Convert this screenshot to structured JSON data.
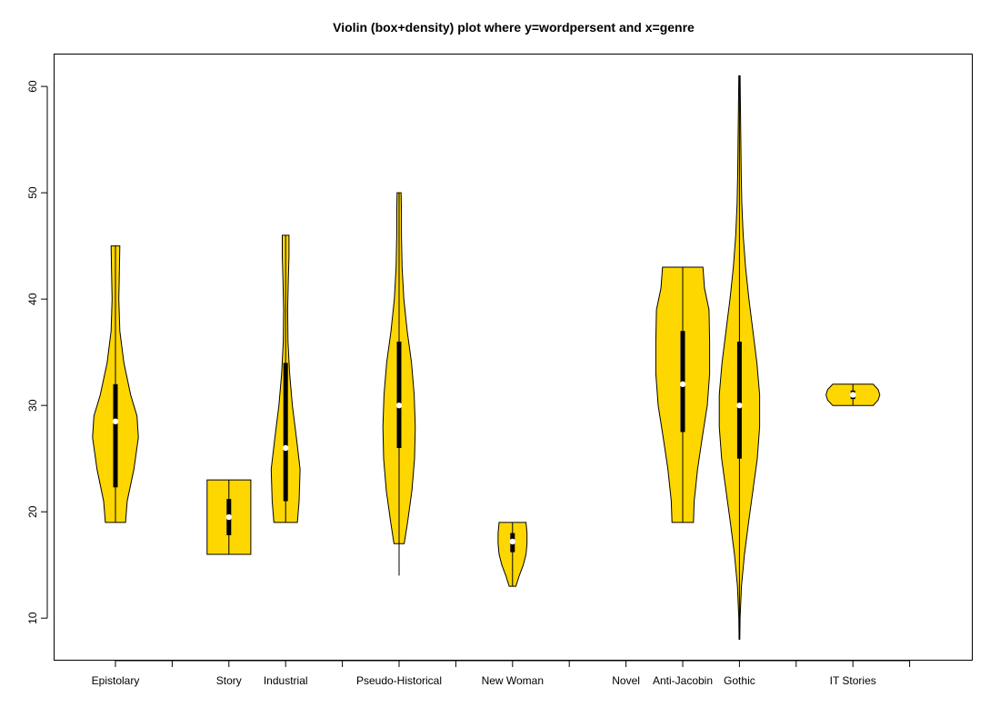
{
  "chart_data": {
    "type": "violin",
    "title": "Violin (box+density) plot where y=wordpersent and x=genre",
    "xlabel": "",
    "ylabel": "",
    "ylim": [
      6,
      63
    ],
    "yticks": [
      10,
      20,
      30,
      40,
      50,
      60
    ],
    "fill_color": "#FFD700",
    "tick_labels": [
      "Epistolary",
      "",
      "Story",
      "Industrial",
      "",
      "Pseudo-Historical",
      "",
      "New Woman",
      "",
      "Novel",
      "Anti-Jacobin",
      "Gothic",
      "",
      "IT Stories",
      ""
    ],
    "categories": [
      {
        "label": "Epistolary",
        "min": 19,
        "max": 45,
        "q1": 22.3,
        "median": 28.5,
        "q3": 32,
        "density": [
          [
            19,
            0.3
          ],
          [
            21,
            0.35
          ],
          [
            24,
            0.55
          ],
          [
            27,
            0.68
          ],
          [
            29,
            0.64
          ],
          [
            31,
            0.45
          ],
          [
            34,
            0.25
          ],
          [
            37,
            0.13
          ],
          [
            40,
            0.1
          ],
          [
            43,
            0.12
          ],
          [
            45,
            0.13
          ]
        ]
      },
      {
        "label": "",
        "min": null,
        "max": null,
        "q1": null,
        "median": null,
        "q3": null,
        "density": []
      },
      {
        "label": "Story",
        "min": 16,
        "max": 23,
        "q1": 17.8,
        "median": 19.5,
        "q3": 21.2,
        "density": [
          [
            16,
            0.65
          ],
          [
            23,
            0.65
          ]
        ]
      },
      {
        "label": "Industrial",
        "min": 19,
        "max": 46,
        "q1": 21,
        "median": 26,
        "q3": 34,
        "density": [
          [
            19,
            0.35
          ],
          [
            21,
            0.4
          ],
          [
            24,
            0.43
          ],
          [
            27,
            0.32
          ],
          [
            30,
            0.2
          ],
          [
            33,
            0.12
          ],
          [
            36,
            0.07
          ],
          [
            39,
            0.06
          ],
          [
            42,
            0.08
          ],
          [
            44,
            0.1
          ],
          [
            46,
            0.1
          ]
        ]
      },
      {
        "label": "",
        "min": null,
        "max": null,
        "q1": null,
        "median": null,
        "q3": null,
        "density": []
      },
      {
        "label": "Pseudo-Historical",
        "min": 14,
        "max": 50,
        "q1": 26,
        "median": 30,
        "q3": 36,
        "density": [
          [
            17,
            0.15
          ],
          [
            19,
            0.25
          ],
          [
            22,
            0.38
          ],
          [
            25,
            0.46
          ],
          [
            28,
            0.48
          ],
          [
            31,
            0.45
          ],
          [
            34,
            0.37
          ],
          [
            37,
            0.24
          ],
          [
            40,
            0.14
          ],
          [
            43,
            0.09
          ],
          [
            46,
            0.07
          ],
          [
            48,
            0.07
          ],
          [
            50,
            0.06
          ]
        ]
      },
      {
        "label": "",
        "min": null,
        "max": null,
        "q1": null,
        "median": null,
        "q3": null,
        "density": []
      },
      {
        "label": "New Woman",
        "min": 13,
        "max": 19,
        "q1": 16.2,
        "median": 17.2,
        "q3": 18,
        "density": [
          [
            13,
            0.1
          ],
          [
            14,
            0.2
          ],
          [
            15,
            0.32
          ],
          [
            16,
            0.4
          ],
          [
            17,
            0.43
          ],
          [
            18,
            0.43
          ],
          [
            19,
            0.4
          ]
        ]
      },
      {
        "label": "",
        "min": null,
        "max": null,
        "q1": null,
        "median": null,
        "q3": null,
        "density": []
      },
      {
        "label": "Novel",
        "min": null,
        "max": null,
        "q1": null,
        "median": null,
        "q3": null,
        "density": []
      },
      {
        "label": "Anti-Jacobin",
        "min": 19,
        "max": 43,
        "q1": 27.5,
        "median": 32,
        "q3": 37,
        "density": [
          [
            19,
            0.32
          ],
          [
            21,
            0.34
          ],
          [
            24,
            0.44
          ],
          [
            27,
            0.58
          ],
          [
            30,
            0.73
          ],
          [
            33,
            0.8
          ],
          [
            36,
            0.8
          ],
          [
            39,
            0.78
          ],
          [
            41,
            0.65
          ],
          [
            43,
            0.6
          ]
        ]
      },
      {
        "label": "Gothic",
        "min": 8,
        "max": 61,
        "q1": 25,
        "median": 30,
        "q3": 36,
        "density": [
          [
            8,
            0.01
          ],
          [
            10,
            0.02
          ],
          [
            13,
            0.06
          ],
          [
            16,
            0.15
          ],
          [
            19,
            0.27
          ],
          [
            22,
            0.4
          ],
          [
            25,
            0.53
          ],
          [
            28,
            0.6
          ],
          [
            31,
            0.6
          ],
          [
            34,
            0.52
          ],
          [
            37,
            0.4
          ],
          [
            40,
            0.28
          ],
          [
            43,
            0.18
          ],
          [
            46,
            0.11
          ],
          [
            49,
            0.07
          ],
          [
            52,
            0.05
          ],
          [
            55,
            0.04
          ],
          [
            58,
            0.03
          ],
          [
            61,
            0.02
          ]
        ]
      },
      {
        "label": "",
        "min": null,
        "max": null,
        "q1": null,
        "median": null,
        "q3": null,
        "density": []
      },
      {
        "label": "IT Stories",
        "min": 30,
        "max": 32,
        "q1": 30.6,
        "median": 31,
        "q3": 31.4,
        "density": [
          [
            30,
            0.6
          ],
          [
            30.5,
            0.75
          ],
          [
            31,
            0.8
          ],
          [
            31.5,
            0.75
          ],
          [
            32,
            0.6
          ]
        ]
      },
      {
        "label": "",
        "min": null,
        "max": null,
        "q1": null,
        "median": null,
        "q3": null,
        "density": []
      }
    ]
  }
}
